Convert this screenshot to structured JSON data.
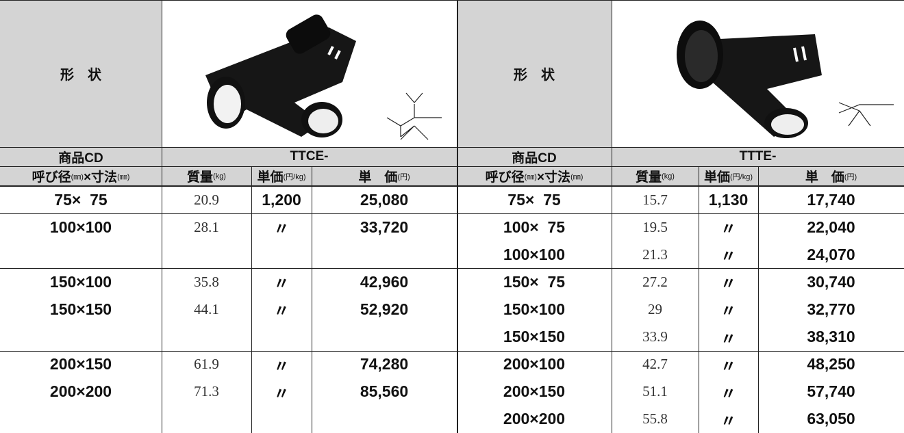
{
  "left": {
    "shape_label": "形　状",
    "product_code_label": "商品CD",
    "product_code": "TTCE-",
    "headers": [
      [
        "呼び径",
        "(㎜)",
        "×寸法",
        "(㎜)"
      ],
      [
        "質量",
        "(kg)"
      ],
      [
        "単価",
        "(円/kg)"
      ],
      [
        "単　価",
        "(円)"
      ]
    ],
    "rows": [
      [
        "75×  75",
        "20.9",
        "1,200",
        "25,080"
      ],
      [
        "100×100",
        "28.1",
        "〃",
        "33,720"
      ],
      null,
      [
        "150×100",
        "35.8",
        "〃",
        "42,960"
      ],
      [
        "150×150",
        "44.1",
        "〃",
        "52,920"
      ],
      null,
      [
        "200×150",
        "61.9",
        "〃",
        "74,280"
      ],
      [
        "200×200",
        "71.3",
        "〃",
        "85,560"
      ],
      null
    ]
  },
  "right": {
    "shape_label": "形　状",
    "product_code_label": "商品CD",
    "product_code": "TTTE-",
    "headers": [
      [
        "呼び径",
        "(㎜)",
        "×寸法",
        "(㎜)"
      ],
      [
        "質量",
        "(kg)"
      ],
      [
        "単価",
        "(円/kg)"
      ],
      [
        "単　価",
        "(円)"
      ]
    ],
    "rows": [
      [
        "75×  75",
        "15.7",
        "1,130",
        "17,740"
      ],
      [
        "100×  75",
        "19.5",
        "〃",
        "22,040"
      ],
      [
        "100×100",
        "21.3",
        "〃",
        "24,070"
      ],
      [
        "150×  75",
        "27.2",
        "〃",
        "30,740"
      ],
      [
        "150×100",
        "29",
        "〃",
        "32,770"
      ],
      [
        "150×150",
        "33.9",
        "〃",
        "38,310"
      ],
      [
        "200×100",
        "42.7",
        "〃",
        "48,250"
      ],
      [
        "200×150",
        "51.1",
        "〃",
        "57,740"
      ],
      [
        "200×200",
        "55.8",
        "〃",
        "63,050"
      ]
    ]
  }
}
